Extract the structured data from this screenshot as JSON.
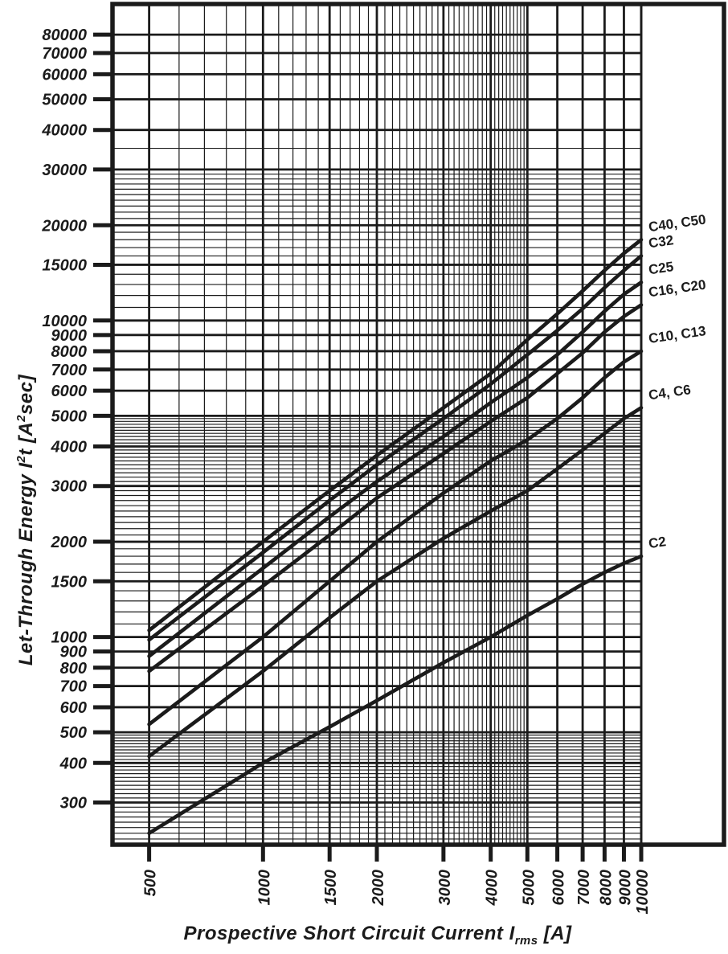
{
  "figure": {
    "y_axis_title": {
      "p1": "Let-Through Energy I",
      "s1": "2",
      "p2": "t [A",
      "s2": "2",
      "p3": "sec]"
    },
    "x_axis_title": {
      "pre": "Prospective Short Circuit Current I",
      "sub": "rms",
      "post": " [A]"
    }
  },
  "chart_data": {
    "type": "line",
    "x_scale": "log",
    "y_scale": "log",
    "title": "",
    "xlabel": "Prospective Short Circuit Current Irms [A]",
    "ylabel": "Let-Through Energy I2t [A2sec]",
    "xlim": [
      400,
      10000
    ],
    "ylim": [
      222,
      100000
    ],
    "grid": "log-minor-bands",
    "legend_position": "right-margin-labels",
    "line_color": "#1b1b1b",
    "x_ticks_labeled": [
      500,
      1000,
      1500,
      2000,
      3000,
      4000,
      5000,
      6000,
      7000,
      8000,
      9000,
      10000
    ],
    "y_ticks_labeled": [
      300,
      400,
      500,
      600,
      700,
      800,
      900,
      1000,
      1500,
      2000,
      3000,
      4000,
      5000,
      6000,
      7000,
      8000,
      9000,
      10000,
      15000,
      20000,
      30000,
      40000,
      50000,
      60000,
      70000,
      80000
    ],
    "x_minor_ranges": [
      {
        "from": 400,
        "to": 5000,
        "step": 100
      }
    ],
    "y_minor_ranges": [
      {
        "from": 230,
        "to": 500,
        "step": 10
      },
      {
        "from": 1000,
        "to": 5000,
        "step": 100
      },
      {
        "from": 10000,
        "to": 30000,
        "step": 1000
      }
    ],
    "y_minor_extra": [
      35000
    ],
    "x": [
      500,
      1000,
      1500,
      2000,
      3000,
      4000,
      5000,
      6000,
      7000,
      8000,
      9000,
      10000
    ],
    "series": [
      {
        "name": "C40, C50",
        "values": [
          1050,
          2000,
          2900,
          3750,
          5300,
          6800,
          8700,
          10500,
          12400,
          14400,
          16300,
          18000
        ]
      },
      {
        "name": "C32",
        "values": [
          980,
          1850,
          2700,
          3500,
          4900,
          6300,
          7800,
          9300,
          10900,
          12700,
          14400,
          16000
        ]
      },
      {
        "name": "C25",
        "values": [
          870,
          1650,
          2400,
          3100,
          4300,
          5500,
          6600,
          7800,
          9200,
          10700,
          12100,
          13200
        ]
      },
      {
        "name": "C16, C20",
        "values": [
          780,
          1450,
          2100,
          2750,
          3800,
          4800,
          5700,
          6800,
          7900,
          9200,
          10300,
          11200
        ]
      },
      {
        "name": "C10, C13",
        "values": [
          530,
          1000,
          1500,
          2000,
          2850,
          3600,
          4200,
          4900,
          5700,
          6600,
          7400,
          8000
        ]
      },
      {
        "name": "C4, C6",
        "values": [
          420,
          780,
          1150,
          1500,
          2050,
          2500,
          2900,
          3400,
          3900,
          4400,
          4900,
          5300
        ]
      },
      {
        "name": "C2",
        "values": [
          240,
          400,
          520,
          630,
          830,
          1000,
          1170,
          1320,
          1470,
          1600,
          1710,
          1800
        ]
      }
    ]
  }
}
